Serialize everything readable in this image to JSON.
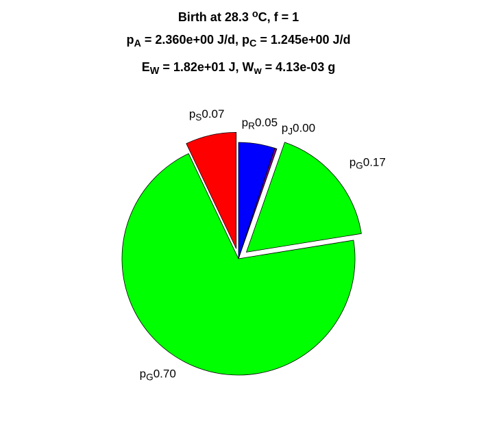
{
  "chart_data": {
    "type": "pie",
    "title": [
      [
        {
          "text": "Birth at 28.3 "
        },
        {
          "sup": "o"
        },
        {
          "text": "C, f = 1"
        }
      ],
      [
        {
          "text": "p"
        },
        {
          "sub": "A"
        },
        {
          "text": " = 2.360e+00 J/d, p"
        },
        {
          "sub": "C"
        },
        {
          "text": " = 1.245e+00 J/d"
        }
      ],
      [
        {
          "text": "E"
        },
        {
          "sub": "W"
        },
        {
          "text": " = 1.82e+01 J, W"
        },
        {
          "sub": "w"
        },
        {
          "text": " = 4.13e-03 g"
        }
      ]
    ],
    "labels": [
      [
        {
          "text": "p"
        },
        {
          "sub": "R"
        }
      ],
      [
        {
          "text": "p"
        },
        {
          "sub": "J"
        }
      ],
      [
        {
          "text": "p"
        },
        {
          "sub": "G"
        }
      ],
      [
        {
          "text": "p"
        },
        {
          "sub": "G"
        }
      ],
      [
        {
          "text": "p"
        },
        {
          "sub": "S"
        }
      ]
    ],
    "values": [
      0.05,
      0.003,
      0.17,
      0.7,
      0.07
    ],
    "value_labels": [
      "0.05",
      "0.00",
      "0.17",
      "0.70",
      "0.07"
    ],
    "colors": [
      "#0000ff",
      "#800080",
      "#00ff00",
      "#00ff00",
      "#ff0000"
    ],
    "explode": [
      false,
      false,
      true,
      false,
      true
    ]
  }
}
